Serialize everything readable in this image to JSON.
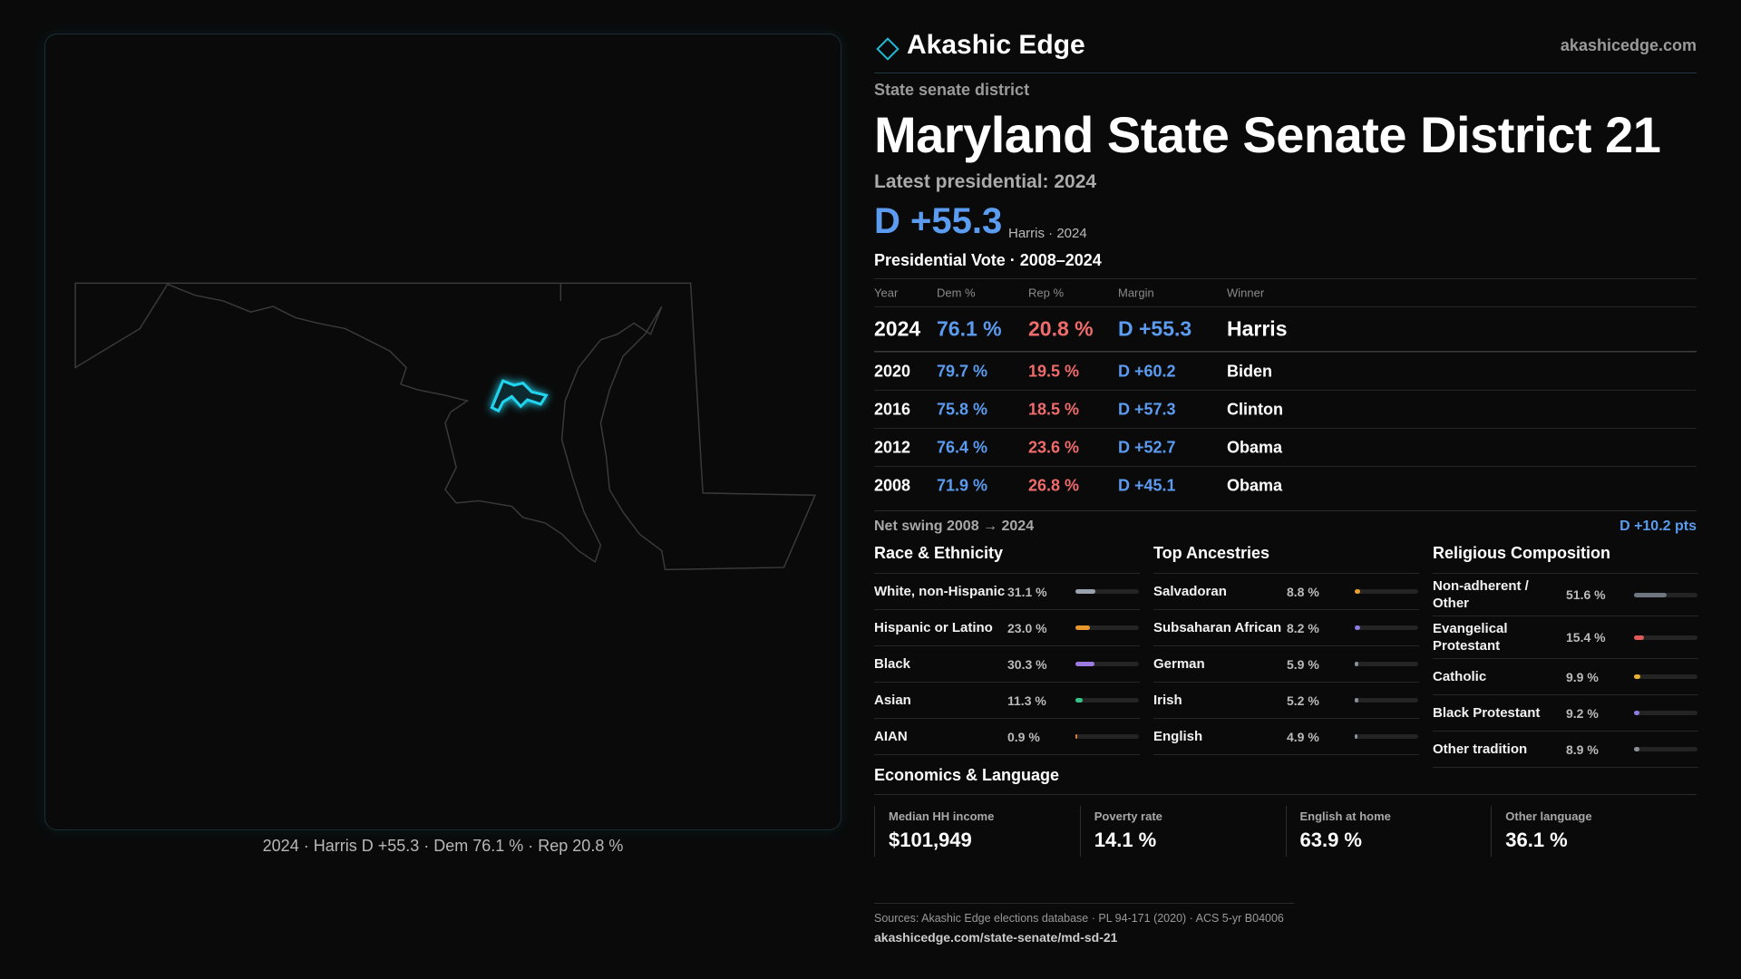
{
  "header": {
    "brand": "Akashic Edge",
    "site": "akashicedge.com"
  },
  "kicker": "State senate district",
  "title": "Maryland State Senate District 21",
  "latest_label": "Latest presidential: 2024",
  "headline": {
    "margin": "D +55.3",
    "note": "Harris · 2024"
  },
  "vote_table": {
    "title": "Presidential Vote · 2008–2024",
    "columns": [
      "Year",
      "Dem %",
      "Rep %",
      "Margin",
      "Winner"
    ],
    "rows": [
      [
        "2024",
        "76.1 %",
        "20.8 %",
        "D +55.3",
        "Harris"
      ],
      [
        "2020",
        "79.7 %",
        "19.5 %",
        "D +60.2",
        "Biden"
      ],
      [
        "2016",
        "75.8 %",
        "18.5 %",
        "D +57.3",
        "Clinton"
      ],
      [
        "2012",
        "76.4 %",
        "23.6 %",
        "D +52.7",
        "Obama"
      ],
      [
        "2008",
        "71.9 %",
        "26.8 %",
        "D +45.1",
        "Obama"
      ]
    ]
  },
  "swing": {
    "label": "Net swing 2008 → 2024",
    "value": "D +10.2 pts"
  },
  "race": {
    "title": "Race & Ethnicity",
    "items": [
      {
        "name": "White, non-Hispanic",
        "value": 31.1,
        "label": "31.1 %",
        "color": "#9aa3ad"
      },
      {
        "name": "Hispanic or Latino",
        "value": 23.0,
        "label": "23.0 %",
        "color": "#e8962e"
      },
      {
        "name": "Black",
        "value": 30.3,
        "label": "30.3 %",
        "color": "#9b7be0"
      },
      {
        "name": "Asian",
        "value": 11.3,
        "label": "11.3 %",
        "color": "#36c28a"
      },
      {
        "name": "AIAN",
        "value": 0.9,
        "label": "0.9 %",
        "color": "#e07a3a"
      }
    ]
  },
  "ancestry": {
    "title": "Top Ancestries",
    "items": [
      {
        "name": "Salvadoran",
        "value": 8.8,
        "label": "8.8 %",
        "color": "#e8a030"
      },
      {
        "name": "Subsaharan African",
        "value": 8.2,
        "label": "8.2 %",
        "color": "#8b7be0"
      },
      {
        "name": "German",
        "value": 5.9,
        "label": "5.9 %",
        "color": "#8a8f96"
      },
      {
        "name": "Irish",
        "value": 5.2,
        "label": "5.2 %",
        "color": "#8a8f96"
      },
      {
        "name": "English",
        "value": 4.9,
        "label": "4.9 %",
        "color": "#8a8f96"
      }
    ]
  },
  "religion": {
    "title": "Religious Composition",
    "items": [
      {
        "name": "Non-adherent / Other",
        "value": 51.6,
        "label": "51.6 %",
        "color": "#6f7680"
      },
      {
        "name": "Evangelical Protestant",
        "value": 15.4,
        "label": "15.4 %",
        "color": "#e05a5a"
      },
      {
        "name": "Catholic",
        "value": 9.9,
        "label": "9.9 %",
        "color": "#e8b030"
      },
      {
        "name": "Black Protestant",
        "value": 9.2,
        "label": "9.2 %",
        "color": "#8b7be0"
      },
      {
        "name": "Other tradition",
        "value": 8.9,
        "label": "8.9 %",
        "color": "#8a8f96"
      }
    ]
  },
  "economics": {
    "title": "Economics & Language",
    "items": [
      {
        "label": "Median HH income",
        "value": "$101,949"
      },
      {
        "label": "Poverty rate",
        "value": "14.1 %"
      },
      {
        "label": "English at home",
        "value": "63.9 %"
      },
      {
        "label": "Other language",
        "value": "36.1 %"
      }
    ]
  },
  "sources": {
    "text": "Sources: Akashic Edge elections database · PL 94-171 (2020) · ACS 5-yr B04006",
    "url": "akashicedge.com/state-senate/md-sd-21"
  },
  "map_caption": "2024 · Harris D +55.3 · Dem 76.1 % · Rep 20.8 %"
}
